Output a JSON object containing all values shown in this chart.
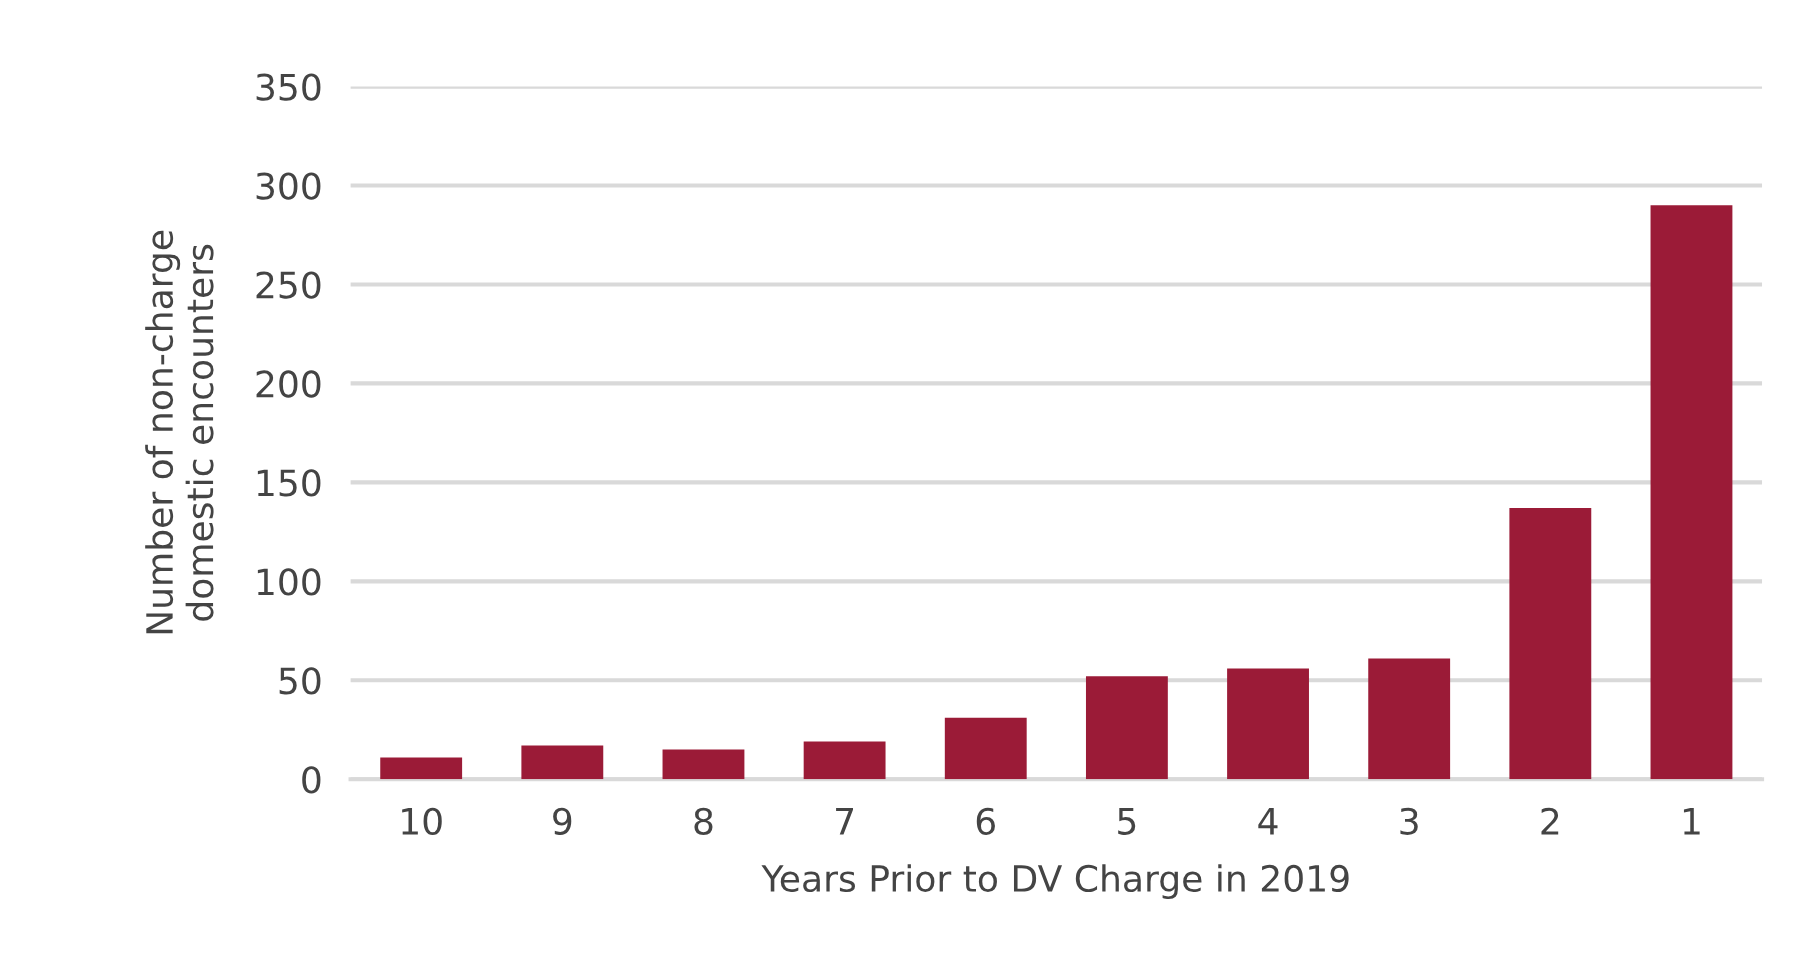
{
  "chart_data": {
    "type": "bar",
    "xlabel": "Years Prior to DV Charge in 2019",
    "ylabel": "Number of non-charge\ndomestic encounters",
    "categories": [
      "10",
      "9",
      "8",
      "7",
      "6",
      "5",
      "4",
      "3",
      "2",
      "1"
    ],
    "values": [
      11,
      17,
      15,
      19,
      31,
      52,
      56,
      61,
      137,
      290
    ],
    "color": "#9b1b37",
    "ylim": [
      0,
      350
    ],
    "yticks": [
      0,
      50,
      100,
      150,
      200,
      250,
      300,
      350
    ],
    "grid": "y"
  }
}
